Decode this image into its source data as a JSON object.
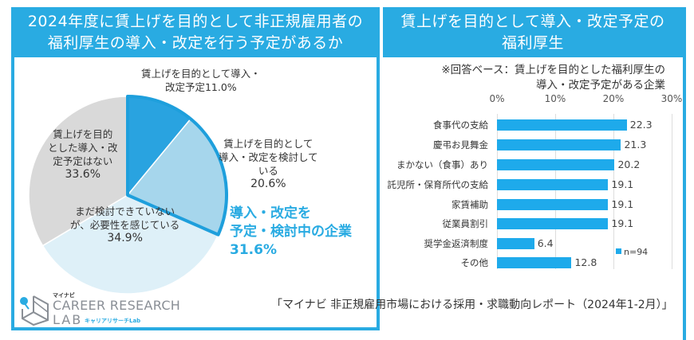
{
  "left_panel": {
    "title_line1": "2024年度に賃上げを目的として非正規雇用者の",
    "title_line2": "福利厚生の導入・改定を行う予定があるか",
    "callout": {
      "line1": "導入・改定を",
      "line2": "予定・検討中の企業",
      "value": "31.6%"
    },
    "slices": [
      {
        "label_lines": [
          "賃上げを目的として導入・",
          "改定予定11.0%"
        ],
        "value": 11.0,
        "color": "#29a3e0"
      },
      {
        "label_lines": [
          "賃上げを目的として",
          "導入・改定を検討して",
          "いる",
          "20.6%"
        ],
        "value": 20.6,
        "color": "#a6d6ec"
      },
      {
        "label_lines": [
          "まだ検討できていない",
          "が、必要性を感じている",
          "34.9%"
        ],
        "value": 34.9,
        "color": "#def0f8"
      },
      {
        "label_lines": [
          "賃上げを目的",
          "とした導入・改",
          "定予定はない",
          "33.6%"
        ],
        "value": 33.6,
        "color": "#d9d9d9"
      }
    ]
  },
  "right_panel": {
    "title_line1": "賃上げを目的として導入・改定予定の",
    "title_line2": "福利厚生",
    "base_note_line1": "※回答ベース：賃上げを目的とした福利厚生の",
    "base_note_line2": "導入・改定予定がある企業",
    "axis_ticks": [
      "0%",
      "10%",
      "20%",
      "30%"
    ],
    "legend": "n=94"
  },
  "logo": {
    "kana": "マイナビ",
    "career": "CAREER RESEARCH",
    "lab": "LAB",
    "sub": "キャリアリサーチLab"
  },
  "source": "「マイナビ 非正規雇用市場における採用・求職動向レポート（2024年1-2月）」",
  "chart_data": [
    {
      "type": "pie",
      "title": "2024年度に賃上げを目的として非正規雇用者の福利厚生の導入・改定を行う予定があるか",
      "categories": [
        "賃上げを目的として導入・改定予定",
        "賃上げを目的として導入・改定を検討している",
        "まだ検討できていないが、必要性を感じている",
        "賃上げを目的とした導入・改定予定はない"
      ],
      "values": [
        11.0,
        20.6,
        34.9,
        33.6
      ],
      "unit": "%",
      "annotations": [
        "導入・改定を予定・検討中の企業 31.6%"
      ]
    },
    {
      "type": "bar",
      "orientation": "horizontal",
      "title": "賃上げを目的として導入・改定予定の福利厚生",
      "subtitle": "※回答ベース：賃上げを目的とした福利厚生の導入・改定予定がある企業",
      "categories": [
        "食事代の支給",
        "慶弔お見舞金",
        "まかない（食事）あり",
        "託児所・保育所代の支給",
        "家賃補助",
        "従業員割引",
        "奨学金返済制度",
        "その他"
      ],
      "series": [
        {
          "name": "n=94",
          "values": [
            22.3,
            21.3,
            20.2,
            19.1,
            19.1,
            19.1,
            6.4,
            12.8
          ]
        }
      ],
      "xlabel": "",
      "ylabel": "",
      "xlim": [
        0,
        30
      ],
      "xticks": [
        "0%",
        "10%",
        "20%",
        "30%"
      ],
      "grid": true,
      "legend_position": "right"
    }
  ]
}
